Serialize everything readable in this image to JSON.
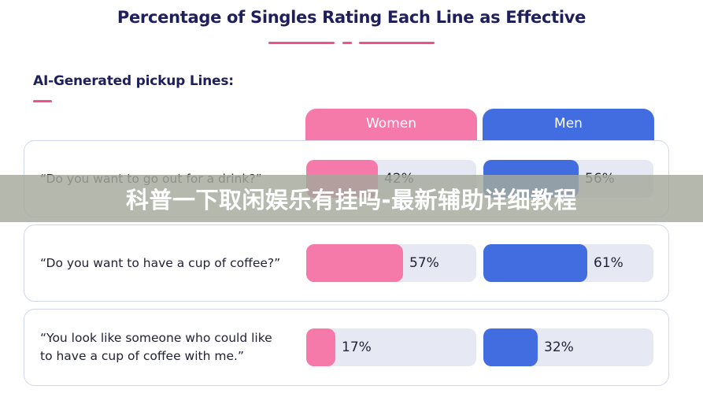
{
  "header": {
    "title": "Percentage of Singles Rating Each Line as Effective",
    "subtitle": "AI-Generated pickup Lines:",
    "accent_color": "#f0508f",
    "text_color": "#1f1f5c"
  },
  "chart_data": {
    "type": "bar",
    "title": "Percentage of Singles Rating Each Line as Effective",
    "subtitle": "AI-Generated pickup Lines:",
    "categories": [
      "“Do you want to go out for a drink?”",
      "“Do you want to have a cup of coffee?”",
      "“You look like someone who could like to have a cup of coffee with me.”"
    ],
    "series": [
      {
        "name": "Women",
        "color": "#f57aaa",
        "values": [
          42,
          57,
          17
        ],
        "labels": [
          "42%",
          "57%",
          "17%"
        ]
      },
      {
        "name": "Men",
        "color": "#416de0",
        "values": [
          56,
          61,
          32
        ],
        "labels": [
          "56%",
          "61%",
          "32%"
        ]
      }
    ],
    "ylim": [
      0,
      100
    ],
    "grid": false,
    "legend": "top"
  },
  "overlay": {
    "banner_text": "科普一下取闲娱乐有挂吗-最新辅助详细教程"
  }
}
